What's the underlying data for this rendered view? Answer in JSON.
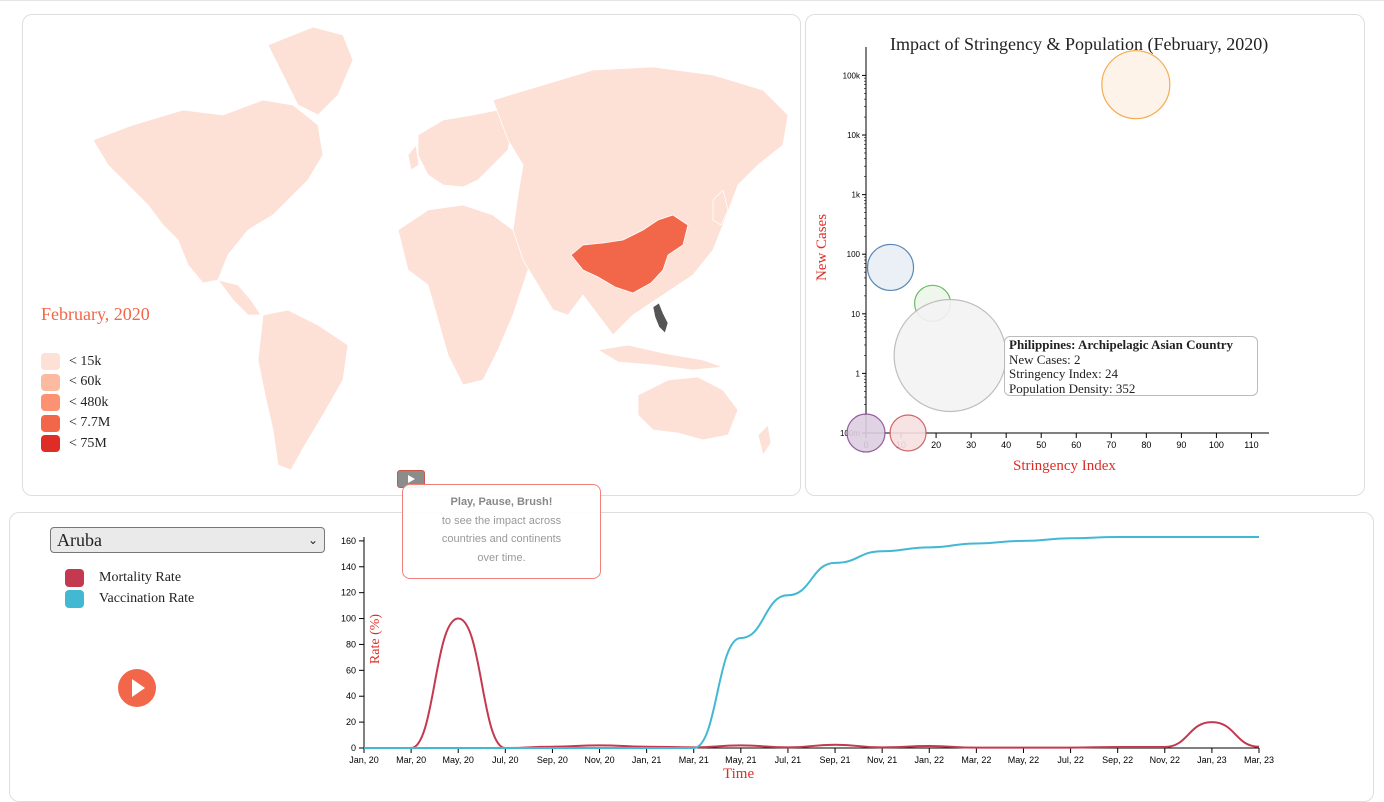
{
  "map": {
    "period_label": "February, 2020",
    "legend": [
      {
        "label": "< 15k",
        "color": "#fde0d6"
      },
      {
        "label": "< 60k",
        "color": "#fcbba1"
      },
      {
        "label": "< 480k",
        "color": "#fc9272"
      },
      {
        "label": "< 7.7M",
        "color": "#f26649"
      },
      {
        "label": "< 75M",
        "color": "#de2d26"
      }
    ],
    "play_button": "play-icon",
    "tooltip": {
      "title": "Play, Pause, Brush!",
      "line1": "to see the impact across",
      "line2": "countries and continents",
      "line3": "over time."
    }
  },
  "scatter": {
    "title": "Impact of Stringency & Population (February, 2020)",
    "hover": {
      "title": "Philippines: Archipelagic Asian Country",
      "cases": "New Cases: 2",
      "stringency": "Stringency Index: 24",
      "density": "Population Density: 352"
    },
    "chart_data": {
      "type": "scatter",
      "title": "Impact of Stringency & Population (February, 2020)",
      "xlabel": "Stringency Index",
      "ylabel": "New Cases",
      "xlim": [
        0,
        115
      ],
      "ylim": [
        0.1,
        300000
      ],
      "y_scale": "log",
      "x_ticks": [
        "0",
        "10",
        "20",
        "30",
        "40",
        "50",
        "60",
        "70",
        "80",
        "90",
        "100",
        "110"
      ],
      "y_ticks": [
        "100m",
        "1",
        "10",
        "100",
        "1k",
        "10k",
        "100k"
      ],
      "points": [
        {
          "x": 77,
          "y": 70000,
          "size": 34,
          "fill": "#fdf2e6",
          "stroke": "#f4a340"
        },
        {
          "x": 7,
          "y": 60,
          "size": 23,
          "fill": "#e8eff6",
          "stroke": "#4a7bb0"
        },
        {
          "x": 19,
          "y": 15,
          "size": 18,
          "fill": "#eef7ec",
          "stroke": "#5cb552"
        },
        {
          "x": 24,
          "y": 2,
          "size": 56,
          "fill": "#f3f3f3",
          "stroke": "#b8b8b8"
        },
        {
          "x": 0,
          "y": 0.1,
          "size": 19,
          "fill": "#ddcfe0",
          "stroke": "#8a4d94"
        },
        {
          "x": 12,
          "y": 0.1,
          "size": 18,
          "fill": "#f7e0e0",
          "stroke": "#c9555b"
        }
      ]
    }
  },
  "line": {
    "country": "Aruba",
    "series_labels": [
      "Mortality Rate",
      "Vaccination Rate"
    ],
    "series_colors": [
      "#c4394f",
      "#43b8d3"
    ],
    "chart_data": {
      "type": "line",
      "xlabel": "Time",
      "ylabel": "Rate (%)",
      "ylim": [
        0,
        163
      ],
      "x_ticks": [
        "Jan, 20",
        "Mar, 20",
        "May, 20",
        "Jul, 20",
        "Sep, 20",
        "Nov, 20",
        "Jan, 21",
        "Mar, 21",
        "May, 21",
        "Jul, 21",
        "Sep, 21",
        "Nov, 21",
        "Jan, 22",
        "Mar, 22",
        "May, 22",
        "Jul, 22",
        "Sep, 22",
        "Nov, 22",
        "Jan, 23",
        "Mar, 23"
      ],
      "y_ticks": [
        "0",
        "20",
        "40",
        "60",
        "80",
        "100",
        "120",
        "140",
        "160"
      ],
      "x": [
        0,
        1,
        2,
        3,
        4,
        5,
        6,
        7,
        8,
        9,
        10,
        11,
        12,
        13,
        14,
        15,
        16,
        17,
        18,
        19
      ],
      "series": [
        {
          "name": "Mortality Rate",
          "values": [
            0,
            0,
            100,
            0,
            1,
            2,
            1,
            0.5,
            2,
            0.5,
            2.5,
            0.5,
            1.5,
            0.3,
            0.3,
            0.3,
            0.8,
            0.8,
            20,
            1
          ]
        },
        {
          "name": "Vaccination Rate",
          "values": [
            0,
            0,
            0,
            0,
            0,
            0,
            0,
            0,
            85,
            118,
            143,
            152,
            155,
            158,
            160,
            162,
            163,
            163,
            163,
            163
          ]
        }
      ]
    }
  }
}
